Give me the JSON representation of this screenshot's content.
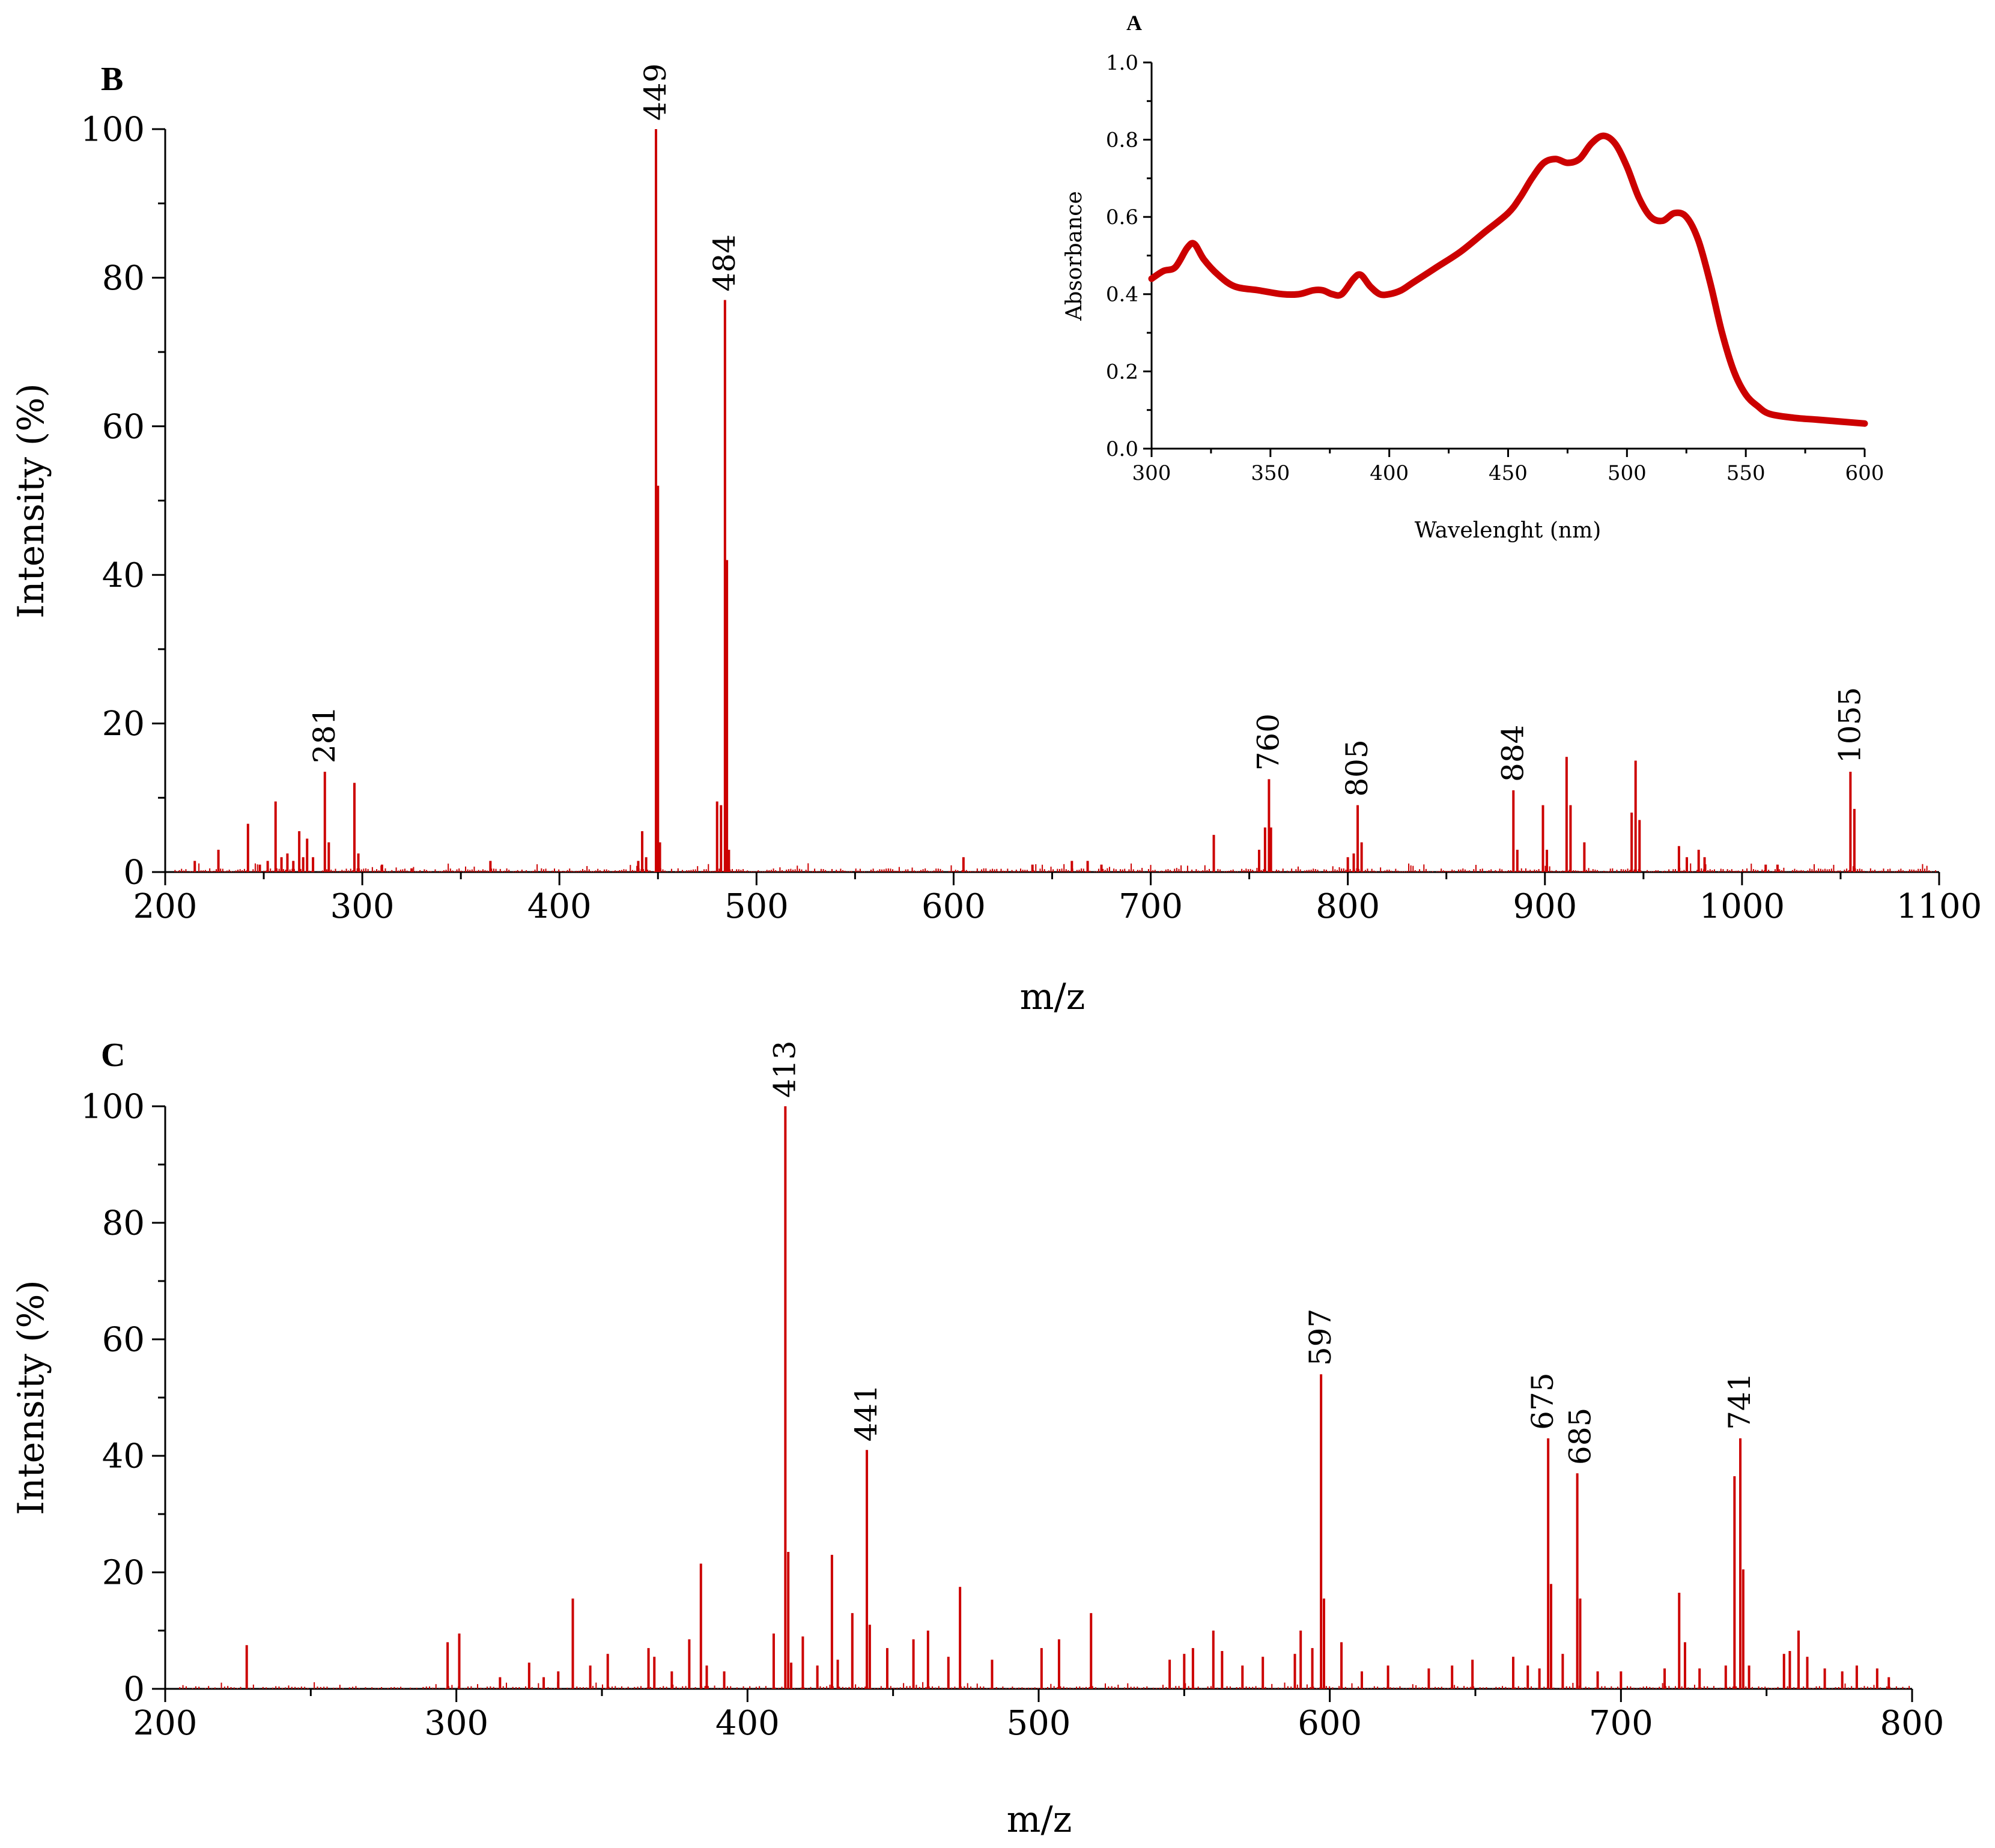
{
  "chart_data": [
    {
      "id": "A",
      "type": "line",
      "panel_label": "A",
      "xlabel": "Wavelenght (nm)",
      "ylabel": "Absorbance",
      "xlim": [
        300,
        600
      ],
      "ylim": [
        0,
        1.0
      ],
      "xticks": [
        "300",
        "350",
        "400",
        "450",
        "500",
        "550",
        "600"
      ],
      "yticks": [
        "0.0",
        "0.2",
        "0.4",
        "0.6",
        "0.8",
        "1.0"
      ],
      "color": "#cc0000",
      "x": [
        300,
        305,
        310,
        315,
        318,
        322,
        328,
        335,
        345,
        355,
        362,
        368,
        372,
        376,
        380,
        385,
        388,
        392,
        396,
        400,
        405,
        410,
        420,
        430,
        440,
        450,
        455,
        460,
        465,
        470,
        475,
        480,
        485,
        490,
        495,
        500,
        505,
        510,
        515,
        520,
        525,
        530,
        535,
        540,
        545,
        550,
        555,
        560,
        570,
        580,
        590,
        600
      ],
      "y": [
        0.44,
        0.46,
        0.47,
        0.52,
        0.53,
        0.49,
        0.45,
        0.42,
        0.41,
        0.4,
        0.4,
        0.41,
        0.41,
        0.4,
        0.4,
        0.44,
        0.45,
        0.42,
        0.4,
        0.4,
        0.41,
        0.43,
        0.47,
        0.51,
        0.56,
        0.61,
        0.65,
        0.7,
        0.74,
        0.75,
        0.74,
        0.75,
        0.79,
        0.81,
        0.79,
        0.73,
        0.65,
        0.6,
        0.59,
        0.61,
        0.6,
        0.54,
        0.43,
        0.3,
        0.2,
        0.14,
        0.11,
        0.09,
        0.08,
        0.075,
        0.07,
        0.065
      ]
    },
    {
      "id": "B",
      "type": "bar",
      "panel_label": "B",
      "xlabel": "m/z",
      "ylabel": "Intensity (%)",
      "xlim": [
        200,
        1100
      ],
      "ylim": [
        0,
        100
      ],
      "xticks": [
        "200",
        "300",
        "400",
        "500",
        "600",
        "700",
        "800",
        "900",
        "1000",
        "1100"
      ],
      "yticks": [
        "0",
        "20",
        "40",
        "60",
        "80",
        "100"
      ],
      "color": "#cc0000",
      "peak_labels": [
        {
          "mz": 449,
          "intensity": 100,
          "text": "449"
        },
        {
          "mz": 484,
          "intensity": 77,
          "text": "484"
        },
        {
          "mz": 281,
          "intensity": 13.5,
          "text": "281"
        },
        {
          "mz": 760,
          "intensity": 12.5,
          "text": "760"
        },
        {
          "mz": 805,
          "intensity": 9,
          "text": "805"
        },
        {
          "mz": 884,
          "intensity": 11,
          "text": "884"
        },
        {
          "mz": 1055,
          "intensity": 13.5,
          "text": "1055"
        }
      ],
      "peaks": [
        [
          215,
          1.5
        ],
        [
          227,
          3
        ],
        [
          242,
          6.5
        ],
        [
          248,
          1
        ],
        [
          252,
          1.5
        ],
        [
          256,
          9.5
        ],
        [
          259,
          2
        ],
        [
          262,
          2.5
        ],
        [
          265,
          1.5
        ],
        [
          268,
          5.5
        ],
        [
          270,
          2
        ],
        [
          272,
          4.5
        ],
        [
          275,
          2
        ],
        [
          281,
          13.5
        ],
        [
          283,
          4
        ],
        [
          296,
          12
        ],
        [
          298,
          2.5
        ],
        [
          310,
          1
        ],
        [
          325,
          0.5
        ],
        [
          365,
          1.5
        ],
        [
          440,
          1.5
        ],
        [
          442,
          5.5
        ],
        [
          444,
          2
        ],
        [
          449,
          100
        ],
        [
          450,
          52
        ],
        [
          451,
          4
        ],
        [
          480,
          9.5
        ],
        [
          482,
          9
        ],
        [
          484,
          77
        ],
        [
          485,
          42
        ],
        [
          486,
          3
        ],
        [
          605,
          2
        ],
        [
          640,
          1
        ],
        [
          660,
          1.5
        ],
        [
          668,
          1.5
        ],
        [
          675,
          1
        ],
        [
          732,
          5
        ],
        [
          755,
          3
        ],
        [
          758,
          6
        ],
        [
          760,
          12.5
        ],
        [
          761,
          6
        ],
        [
          800,
          2
        ],
        [
          803,
          2.5
        ],
        [
          805,
          9
        ],
        [
          807,
          4
        ],
        [
          884,
          11
        ],
        [
          886,
          3
        ],
        [
          899,
          9
        ],
        [
          901,
          3
        ],
        [
          911,
          15.5
        ],
        [
          913,
          9
        ],
        [
          920,
          4
        ],
        [
          944,
          8
        ],
        [
          946,
          15
        ],
        [
          948,
          7
        ],
        [
          968,
          3.5
        ],
        [
          972,
          2
        ],
        [
          978,
          3
        ],
        [
          981,
          2
        ],
        [
          1012,
          1
        ],
        [
          1018,
          1
        ],
        [
          1055,
          13.5
        ],
        [
          1057,
          8.5
        ]
      ]
    },
    {
      "id": "C",
      "type": "bar",
      "panel_label": "C",
      "xlabel": "m/z",
      "ylabel": "Intensity (%)",
      "xlim": [
        200,
        800
      ],
      "ylim": [
        0,
        100
      ],
      "xticks": [
        "200",
        "300",
        "400",
        "500",
        "600",
        "700",
        "800"
      ],
      "yticks": [
        "0",
        "20",
        "40",
        "60",
        "80",
        "100"
      ],
      "color": "#cc0000",
      "peak_labels": [
        {
          "mz": 413,
          "intensity": 100,
          "text": "413"
        },
        {
          "mz": 441,
          "intensity": 41,
          "text": "441"
        },
        {
          "mz": 597,
          "intensity": 54,
          "text": "597"
        },
        {
          "mz": 675,
          "intensity": 43,
          "text": "675"
        },
        {
          "mz": 685,
          "intensity": 37,
          "text": "685"
        },
        {
          "mz": 741,
          "intensity": 43,
          "text": "741"
        }
      ],
      "peaks": [
        [
          228,
          7.5
        ],
        [
          297,
          8
        ],
        [
          301,
          9.5
        ],
        [
          315,
          2
        ],
        [
          325,
          4.5
        ],
        [
          330,
          2
        ],
        [
          335,
          3
        ],
        [
          340,
          15.5
        ],
        [
          346,
          4
        ],
        [
          352,
          6
        ],
        [
          366,
          7
        ],
        [
          368,
          5.5
        ],
        [
          374,
          3
        ],
        [
          380,
          8.5
        ],
        [
          384,
          21.5
        ],
        [
          386,
          4
        ],
        [
          392,
          3
        ],
        [
          409,
          9.5
        ],
        [
          413,
          100
        ],
        [
          414,
          23.5
        ],
        [
          415,
          4.5
        ],
        [
          419,
          9
        ],
        [
          424,
          4
        ],
        [
          429,
          23
        ],
        [
          431,
          5
        ],
        [
          436,
          13
        ],
        [
          441,
          41
        ],
        [
          442,
          11
        ],
        [
          448,
          7
        ],
        [
          457,
          8.5
        ],
        [
          462,
          10
        ],
        [
          469,
          5.5
        ],
        [
          473,
          17.5
        ],
        [
          484,
          5
        ],
        [
          501,
          7
        ],
        [
          507,
          8.5
        ],
        [
          518,
          13
        ],
        [
          545,
          5
        ],
        [
          550,
          6
        ],
        [
          553,
          7
        ],
        [
          560,
          10
        ],
        [
          563,
          6.5
        ],
        [
          570,
          4
        ],
        [
          577,
          5.5
        ],
        [
          588,
          6
        ],
        [
          590,
          10
        ],
        [
          594,
          7
        ],
        [
          597,
          54
        ],
        [
          598,
          15.5
        ],
        [
          604,
          8
        ],
        [
          611,
          3
        ],
        [
          620,
          4
        ],
        [
          634,
          3.5
        ],
        [
          642,
          4
        ],
        [
          649,
          5
        ],
        [
          663,
          5.5
        ],
        [
          668,
          4
        ],
        [
          672,
          3.5
        ],
        [
          675,
          43
        ],
        [
          676,
          18
        ],
        [
          680,
          6
        ],
        [
          685,
          37
        ],
        [
          686,
          15.5
        ],
        [
          692,
          3
        ],
        [
          700,
          3
        ],
        [
          715,
          3.5
        ],
        [
          720,
          16.5
        ],
        [
          722,
          8
        ],
        [
          727,
          3.5
        ],
        [
          736,
          4
        ],
        [
          739,
          36.5
        ],
        [
          741,
          43
        ],
        [
          742,
          20.5
        ],
        [
          744,
          4
        ],
        [
          756,
          6
        ],
        [
          758,
          6.5
        ],
        [
          761,
          10
        ],
        [
          764,
          5.5
        ],
        [
          770,
          3.5
        ],
        [
          776,
          3
        ],
        [
          781,
          4
        ],
        [
          788,
          3.5
        ],
        [
          792,
          2
        ]
      ]
    }
  ]
}
